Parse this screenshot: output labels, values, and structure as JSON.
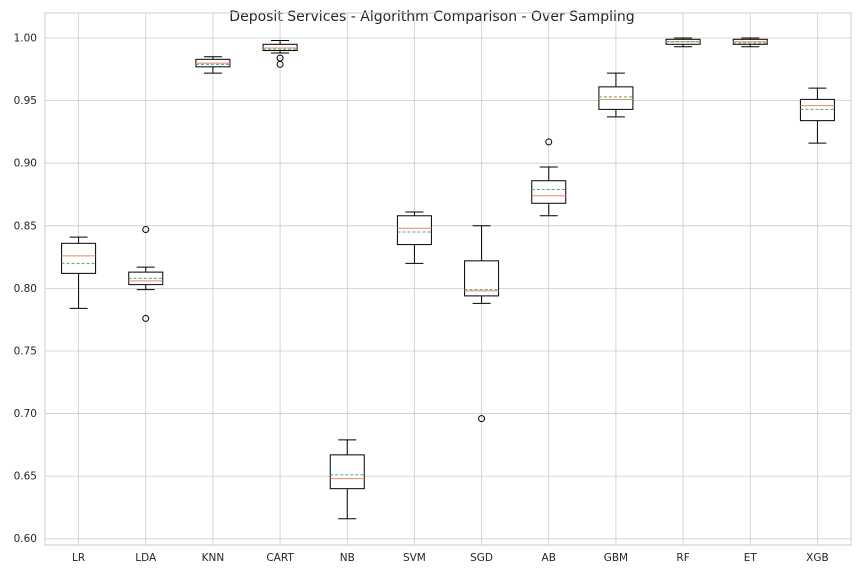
{
  "chart_data": {
    "type": "boxplot",
    "title": "Deposit Services - Algorithm Comparison - Over Sampling",
    "xlabel": "",
    "ylabel": "",
    "ylim": [
      0.595,
      1.02
    ],
    "yticks": [
      "0.60",
      "0.65",
      "0.70",
      "0.75",
      "0.80",
      "0.85",
      "0.90",
      "0.95",
      "1.00"
    ],
    "ytick_values": [
      0.6,
      0.65,
      0.7,
      0.75,
      0.8,
      0.85,
      0.9,
      0.95,
      1.0
    ],
    "grid": true,
    "categories": [
      "LR",
      "LDA",
      "KNN",
      "CART",
      "NB",
      "SVM",
      "SGD",
      "AB",
      "GBM",
      "RF",
      "ET",
      "XGB"
    ],
    "boxes": [
      {
        "label": "LR",
        "whislo": 0.784,
        "q1": 0.812,
        "med": 0.826,
        "mean": 0.82,
        "q3": 0.836,
        "whishi": 0.841,
        "fliers": []
      },
      {
        "label": "LDA",
        "whislo": 0.799,
        "q1": 0.803,
        "med": 0.806,
        "mean": 0.808,
        "q3": 0.813,
        "whishi": 0.817,
        "fliers": [
          0.847,
          0.776
        ]
      },
      {
        "label": "KNN",
        "whislo": 0.972,
        "q1": 0.977,
        "med": 0.98,
        "mean": 0.979,
        "q3": 0.983,
        "whishi": 0.985,
        "fliers": []
      },
      {
        "label": "CART",
        "whislo": 0.988,
        "q1": 0.99,
        "med": 0.992,
        "mean": 0.991,
        "q3": 0.995,
        "whishi": 0.998,
        "fliers": [
          0.984,
          0.979
        ]
      },
      {
        "label": "NB",
        "whislo": 0.616,
        "q1": 0.64,
        "med": 0.648,
        "mean": 0.651,
        "q3": 0.667,
        "whishi": 0.679,
        "fliers": []
      },
      {
        "label": "SVM",
        "whislo": 0.82,
        "q1": 0.835,
        "med": 0.848,
        "mean": 0.845,
        "q3": 0.858,
        "whishi": 0.861,
        "fliers": []
      },
      {
        "label": "SGD",
        "whislo": 0.788,
        "q1": 0.794,
        "med": 0.798,
        "mean": 0.799,
        "q3": 0.822,
        "whishi": 0.85,
        "fliers": [
          0.696
        ]
      },
      {
        "label": "AB",
        "whislo": 0.858,
        "q1": 0.868,
        "med": 0.874,
        "mean": 0.879,
        "q3": 0.886,
        "whishi": 0.897,
        "fliers": [
          0.917
        ]
      },
      {
        "label": "GBM",
        "whislo": 0.937,
        "q1": 0.943,
        "med": 0.951,
        "mean": 0.953,
        "q3": 0.961,
        "whishi": 0.972,
        "fliers": []
      },
      {
        "label": "RF",
        "whislo": 0.993,
        "q1": 0.995,
        "med": 0.997,
        "mean": 0.997,
        "q3": 0.999,
        "whishi": 1.0,
        "fliers": []
      },
      {
        "label": "ET",
        "whislo": 0.993,
        "q1": 0.995,
        "med": 0.997,
        "mean": 0.996,
        "q3": 0.999,
        "whishi": 1.0,
        "fliers": []
      },
      {
        "label": "XGB",
        "whislo": 0.916,
        "q1": 0.934,
        "med": 0.946,
        "mean": 0.943,
        "q3": 0.951,
        "whishi": 0.96,
        "fliers": []
      }
    ],
    "colors": {
      "median": "#e8886e",
      "mean": "#55a868",
      "box": "#000000",
      "grid": "#cccccc",
      "frame": "#cccccc"
    }
  }
}
